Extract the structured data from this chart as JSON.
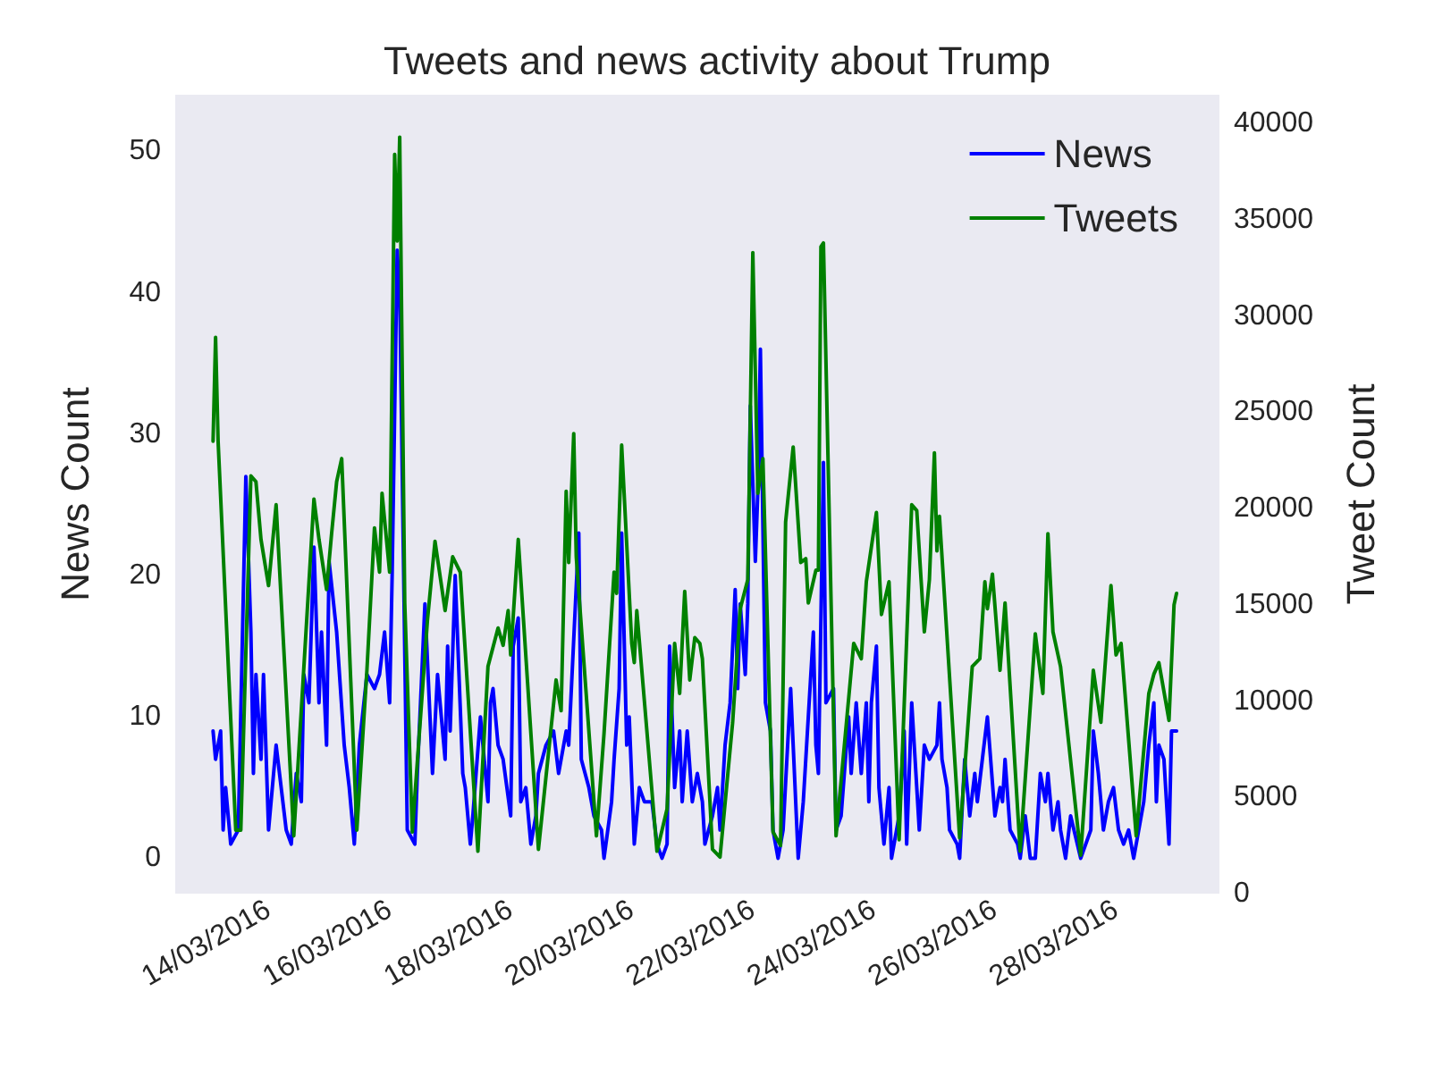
{
  "chart_data": {
    "type": "line",
    "title": "Tweets and news activity about Trump",
    "ylabel": "News Count",
    "y2label": "Tweet Count",
    "legend": "top right",
    "xlim": [
      "2016-03-12T11:00",
      "2016-03-29T17:00"
    ],
    "xticks": [
      {
        "value": "2016-03-14",
        "label": "14/03/2016"
      },
      {
        "value": "2016-03-16",
        "label": "16/03/2016"
      },
      {
        "value": "2016-03-18",
        "label": "18/03/2016"
      },
      {
        "value": "2016-03-20",
        "label": "20/03/2016"
      },
      {
        "value": "2016-03-22",
        "label": "22/03/2016"
      },
      {
        "value": "2016-03-24",
        "label": "24/03/2016"
      },
      {
        "value": "2016-03-26",
        "label": "26/03/2016"
      },
      {
        "value": "2016-03-28",
        "label": "28/03/2016"
      }
    ],
    "ylim": [
      -2.5,
      54
    ],
    "yticks": [
      0,
      10,
      20,
      30,
      40,
      50
    ],
    "y2lim": [
      0,
      41500
    ],
    "y2ticks": [
      0,
      5000,
      10000,
      15000,
      20000,
      25000,
      30000,
      35000,
      40000
    ],
    "series": [
      {
        "name": "News",
        "color": "#0000ff",
        "x": [
          "2016-03-13T02:00",
          "2016-03-13T03:00",
          "2016-03-13T05:00",
          "2016-03-13T06:00",
          "2016-03-13T07:00",
          "2016-03-13T09:00",
          "2016-03-13T12:00",
          "2016-03-13T15:00",
          "2016-03-13T17:00",
          "2016-03-13T18:00",
          "2016-03-13T19:00",
          "2016-03-13T21:00",
          "2016-03-13T22:00",
          "2016-03-14T00:00",
          "2016-03-14T03:00",
          "2016-03-14T05:00",
          "2016-03-14T07:00",
          "2016-03-14T09:00",
          "2016-03-14T11:00",
          "2016-03-14T13:00",
          "2016-03-14T14:00",
          "2016-03-14T16:00",
          "2016-03-14T18:00",
          "2016-03-14T20:00",
          "2016-03-14T21:00",
          "2016-03-14T23:00",
          "2016-03-15T00:00",
          "2016-03-15T03:00",
          "2016-03-15T06:00",
          "2016-03-15T08:00",
          "2016-03-15T10:00",
          "2016-03-15T12:00",
          "2016-03-15T15:00",
          "2016-03-15T18:00",
          "2016-03-15T20:00",
          "2016-03-15T22:00",
          "2016-03-16T00:00",
          "2016-03-16T01:00",
          "2016-03-16T03:00",
          "2016-03-16T04:00",
          "2016-03-16T07:00",
          "2016-03-16T10:00",
          "2016-03-16T11:00",
          "2016-03-16T14:00",
          "2016-03-16T16:00",
          "2016-03-16T17:00",
          "2016-03-16T19:00",
          "2016-03-16T22:00",
          "2016-03-16T23:00",
          "2016-03-17T00:00",
          "2016-03-17T02:00",
          "2016-03-17T05:00",
          "2016-03-17T06:00",
          "2016-03-17T08:00",
          "2016-03-17T09:00",
          "2016-03-17T12:00",
          "2016-03-17T15:00",
          "2016-03-17T16:00",
          "2016-03-17T17:00",
          "2016-03-17T19:00",
          "2016-03-17T21:00",
          "2016-03-18T00:00",
          "2016-03-18T01:00",
          "2016-03-18T03:00",
          "2016-03-18T04:00",
          "2016-03-18T06:00",
          "2016-03-18T08:00",
          "2016-03-18T10:00",
          "2016-03-18T11:00",
          "2016-03-18T14:00",
          "2016-03-18T17:00",
          "2016-03-18T19:00",
          "2016-03-18T22:00",
          "2016-03-18T23:00",
          "2016-03-19T03:00",
          "2016-03-19T04:00",
          "2016-03-19T07:00",
          "2016-03-19T09:00",
          "2016-03-19T12:00",
          "2016-03-19T13:00",
          "2016-03-19T16:00",
          "2016-03-19T17:00",
          "2016-03-19T19:00",
          "2016-03-19T20:00",
          "2016-03-19T22:00",
          "2016-03-19T23:00",
          "2016-03-20T01:00",
          "2016-03-20T03:00",
          "2016-03-20T05:00",
          "2016-03-20T08:00",
          "2016-03-20T10:00",
          "2016-03-20T12:00",
          "2016-03-20T14:00",
          "2016-03-20T15:00",
          "2016-03-20T17:00",
          "2016-03-20T19:00",
          "2016-03-20T20:00",
          "2016-03-20T22:00",
          "2016-03-21T00:00",
          "2016-03-21T02:00",
          "2016-03-21T04:00",
          "2016-03-21T05:00",
          "2016-03-21T08:00",
          "2016-03-21T10:00",
          "2016-03-21T11:00",
          "2016-03-21T13:00",
          "2016-03-21T15:00",
          "2016-03-21T17:00",
          "2016-03-21T18:00",
          "2016-03-21T19:00",
          "2016-03-21T21:00",
          "2016-03-21T22:00",
          "2016-03-21T23:00",
          "2016-03-22T01:00",
          "2016-03-22T02:00",
          "2016-03-22T03:00",
          "2016-03-22T05:00",
          "2016-03-22T07:00",
          "2016-03-22T08:00",
          "2016-03-22T10:00",
          "2016-03-22T12:00",
          "2016-03-22T15:00",
          "2016-03-22T18:00",
          "2016-03-22T20:00",
          "2016-03-22T22:00",
          "2016-03-23T00:00",
          "2016-03-23T01:00",
          "2016-03-23T02:00",
          "2016-03-23T04:00",
          "2016-03-23T05:00",
          "2016-03-23T08:00",
          "2016-03-23T09:00",
          "2016-03-23T11:00",
          "2016-03-23T14:00",
          "2016-03-23T15:00",
          "2016-03-23T17:00",
          "2016-03-23T19:00",
          "2016-03-23T21:00",
          "2016-03-23T22:00",
          "2016-03-23T23:00",
          "2016-03-24T01:00",
          "2016-03-24T02:00",
          "2016-03-24T04:00",
          "2016-03-24T06:00",
          "2016-03-24T07:00",
          "2016-03-24T10:00",
          "2016-03-24T12:00",
          "2016-03-24T13:00",
          "2016-03-24T15:00",
          "2016-03-24T17:00",
          "2016-03-24T18:00",
          "2016-03-24T20:00",
          "2016-03-24T22:00",
          "2016-03-25T01:00",
          "2016-03-25T02:00",
          "2016-03-25T03:00",
          "2016-03-25T05:00",
          "2016-03-25T06:00",
          "2016-03-25T09:00",
          "2016-03-25T10:00",
          "2016-03-25T12:00",
          "2016-03-25T14:00",
          "2016-03-25T16:00",
          "2016-03-25T17:00",
          "2016-03-25T19:00",
          "2016-03-25T21:00",
          "2016-03-26T00:00",
          "2016-03-26T02:00",
          "2016-03-26T03:00",
          "2016-03-26T04:00",
          "2016-03-26T06:00",
          "2016-03-26T09:00",
          "2016-03-26T10:00",
          "2016-03-26T12:00",
          "2016-03-26T14:00",
          "2016-03-26T16:00",
          "2016-03-26T18:00",
          "2016-03-26T20:00",
          "2016-03-26T21:00",
          "2016-03-26T23:00",
          "2016-03-27T01:00",
          "2016-03-27T02:00",
          "2016-03-27T04:00",
          "2016-03-27T06:00",
          "2016-03-27T10:00",
          "2016-03-27T14:00",
          "2016-03-27T15:00",
          "2016-03-27T17:00",
          "2016-03-27T19:00",
          "2016-03-27T21:00",
          "2016-03-27T23:00",
          "2016-03-28T01:00",
          "2016-03-28T03:00",
          "2016-03-28T05:00",
          "2016-03-28T07:00",
          "2016-03-28T09:00",
          "2016-03-28T11:00",
          "2016-03-28T13:00",
          "2016-03-28T15:00",
          "2016-03-28T16:00",
          "2016-03-28T17:00",
          "2016-03-28T19:00",
          "2016-03-28T21:00",
          "2016-03-28T22:00",
          "2016-03-29T00:00"
        ],
        "values": [
          9,
          7,
          9,
          2,
          5,
          1,
          2,
          27,
          16,
          6,
          13,
          7,
          13,
          2,
          8,
          5,
          2,
          1,
          6,
          4,
          13,
          11,
          22,
          11,
          16,
          8,
          21,
          16,
          8,
          5,
          1,
          8,
          13,
          12,
          13,
          16,
          11,
          20,
          43,
          40,
          2,
          1,
          6,
          18,
          10,
          6,
          13,
          7,
          15,
          9,
          20,
          6,
          5,
          1,
          3,
          10,
          4,
          11,
          12,
          8,
          7,
          3,
          15,
          17,
          4,
          5,
          1,
          3,
          6,
          8,
          9,
          6,
          9,
          8,
          23,
          7,
          5,
          3,
          2,
          0,
          4,
          7,
          12,
          23,
          8,
          10,
          1,
          5,
          4,
          4,
          1,
          0,
          1,
          15,
          5,
          9,
          4,
          9,
          4,
          6,
          4,
          1,
          3,
          5,
          2,
          8,
          11,
          19,
          12,
          18,
          13,
          18,
          32,
          21,
          26,
          36,
          11,
          9,
          2,
          0,
          2,
          12,
          0,
          4,
          10,
          16,
          8,
          6,
          28,
          11,
          12,
          2,
          3,
          10,
          6,
          11,
          6,
          11,
          4,
          11,
          15,
          5,
          1,
          5,
          0,
          3,
          9,
          1,
          11,
          5,
          2,
          8,
          7,
          8,
          11,
          7,
          5,
          2,
          1,
          0,
          7,
          3,
          6,
          4,
          7,
          10,
          3,
          5,
          4,
          7,
          2,
          1,
          0,
          3,
          0,
          0,
          6,
          4,
          6,
          2,
          4,
          2,
          0,
          3,
          0,
          2,
          9,
          6,
          2,
          4,
          5,
          2,
          1,
          2,
          0,
          2,
          4,
          8,
          11,
          4,
          8,
          7,
          1,
          9,
          9
        ]
      },
      {
        "name": "Tweets",
        "color": "#008000",
        "axis": "y2",
        "x": [
          "2016-03-13T02:00",
          "2016-03-13T03:00",
          "2016-03-13T04:00",
          "2016-03-13T11:00",
          "2016-03-13T13:00",
          "2016-03-13T17:00",
          "2016-03-13T19:00",
          "2016-03-13T21:00",
          "2016-03-14T00:00",
          "2016-03-14T03:00",
          "2016-03-14T10:00",
          "2016-03-14T18:00",
          "2016-03-14T20:00",
          "2016-03-14T23:00",
          "2016-03-15T01:00",
          "2016-03-15T03:00",
          "2016-03-15T05:00",
          "2016-03-15T11:00",
          "2016-03-15T15:00",
          "2016-03-15T18:00",
          "2016-03-15T20:00",
          "2016-03-15T21:00",
          "2016-03-16T00:00",
          "2016-03-16T02:00",
          "2016-03-16T03:00",
          "2016-03-16T04:00",
          "2016-03-16T06:00",
          "2016-03-16T09:00",
          "2016-03-16T15:00",
          "2016-03-16T18:00",
          "2016-03-16T22:00",
          "2016-03-17T01:00",
          "2016-03-17T04:00",
          "2016-03-17T11:00",
          "2016-03-17T15:00",
          "2016-03-17T19:00",
          "2016-03-17T21:00",
          "2016-03-17T23:00",
          "2016-03-18T00:00",
          "2016-03-18T03:00",
          "2016-03-18T11:00",
          "2016-03-18T18:00",
          "2016-03-18T20:00",
          "2016-03-18T22:00",
          "2016-03-18T23:00",
          "2016-03-19T01:00",
          "2016-03-19T02:00",
          "2016-03-19T10:00",
          "2016-03-19T13:00",
          "2016-03-19T17:00",
          "2016-03-19T18:00",
          "2016-03-19T20:00",
          "2016-03-20T00:00",
          "2016-03-20T01:00",
          "2016-03-20T02:00",
          "2016-03-20T10:00",
          "2016-03-20T14:00",
          "2016-03-20T17:00",
          "2016-03-20T19:00",
          "2016-03-20T21:00",
          "2016-03-20T23:00",
          "2016-03-21T01:00",
          "2016-03-21T03:00",
          "2016-03-21T04:00",
          "2016-03-21T08:00",
          "2016-03-21T11:00",
          "2016-03-21T16:00",
          "2016-03-21T19:00",
          "2016-03-21T22:00",
          "2016-03-22T00:00",
          "2016-03-22T02:00",
          "2016-03-22T04:00",
          "2016-03-22T08:00",
          "2016-03-22T11:00",
          "2016-03-22T13:00",
          "2016-03-22T16:00",
          "2016-03-22T19:00",
          "2016-03-22T21:00",
          "2016-03-22T22:00",
          "2016-03-23T01:00",
          "2016-03-23T02:00",
          "2016-03-23T03:00",
          "2016-03-23T04:00",
          "2016-03-23T09:00",
          "2016-03-23T16:00",
          "2016-03-23T19:00",
          "2016-03-23T21:00",
          "2016-03-24T01:00",
          "2016-03-24T03:00",
          "2016-03-24T06:00",
          "2016-03-24T10:00",
          "2016-03-24T15:00",
          "2016-03-24T17:00",
          "2016-03-24T20:00",
          "2016-03-24T22:00",
          "2016-03-25T00:00",
          "2016-03-25T01:00",
          "2016-03-25T02:00",
          "2016-03-25T10:00",
          "2016-03-25T15:00",
          "2016-03-25T18:00",
          "2016-03-25T20:00",
          "2016-03-25T21:00",
          "2016-03-25T23:00",
          "2016-03-26T02:00",
          "2016-03-26T04:00",
          "2016-03-26T10:00",
          "2016-03-26T16:00",
          "2016-03-26T19:00",
          "2016-03-26T21:00",
          "2016-03-26T23:00",
          "2016-03-27T02:00",
          "2016-03-27T10:00",
          "2016-03-27T15:00",
          "2016-03-27T18:00",
          "2016-03-27T22:00",
          "2016-03-28T00:00",
          "2016-03-28T02:00",
          "2016-03-28T08:00",
          "2016-03-28T13:00",
          "2016-03-28T15:00",
          "2016-03-28T17:00",
          "2016-03-28T21:00",
          "2016-03-28T23:00",
          "2016-03-29T00:00"
        ],
        "values": [
          23500,
          28900,
          23500,
          3300,
          3300,
          21700,
          21400,
          18400,
          16000,
          20200,
          3000,
          20500,
          18400,
          15800,
          18700,
          21400,
          22600,
          3300,
          11600,
          19000,
          16700,
          20800,
          16700,
          38400,
          33900,
          39300,
          15100,
          3200,
          14200,
          18300,
          14700,
          17500,
          16700,
          2200,
          11800,
          13800,
          12900,
          14700,
          12400,
          18400,
          2300,
          11100,
          9500,
          20900,
          17200,
          23900,
          17500,
          3000,
          8300,
          16700,
          15600,
          23300,
          13000,
          12000,
          14700,
          2200,
          4400,
          13000,
          10400,
          15700,
          11100,
          13300,
          13000,
          12200,
          2300,
          1900,
          8900,
          14800,
          16300,
          33300,
          20800,
          22600,
          3200,
          2500,
          19300,
          23200,
          17200,
          17400,
          15100,
          16800,
          16800,
          33600,
          33800,
          3000,
          13000,
          12200,
          16200,
          19800,
          14500,
          16200,
          2800,
          20200,
          19900,
          13600,
          16300,
          22900,
          17800,
          19600,
          2900,
          11800,
          12200,
          16200,
          14800,
          16600,
          11600,
          15100,
          2200,
          13500,
          10400,
          18700,
          13600,
          11800,
          2000,
          11600,
          8900,
          16000,
          12400,
          13000,
          3000,
          10400,
          11400,
          12000,
          9000,
          15000,
          15600
        ]
      }
    ]
  }
}
